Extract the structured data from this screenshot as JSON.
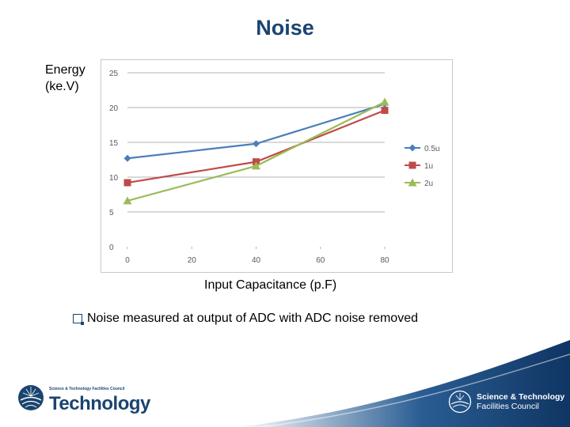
{
  "page": {
    "title": "Noise",
    "bullet": "Noise measured at output of ADC with ADC noise removed"
  },
  "chart_data": {
    "type": "line",
    "title": "Noise",
    "ylabel_line1": "Energy",
    "ylabel_line2": "(ke.V)",
    "xlabel": "Input Capacitance (p.F)",
    "x_ticks": [
      0,
      20,
      40,
      60,
      80
    ],
    "y_ticks": [
      0,
      5,
      10,
      15,
      20,
      25
    ],
    "xlim": [
      0,
      80
    ],
    "ylim": [
      0,
      25
    ],
    "grid": true,
    "legend_position": "right",
    "x": [
      0,
      40,
      80
    ],
    "series": [
      {
        "name": "0.5u",
        "values": [
          12.7,
          14.8,
          20.5
        ],
        "color": "#4a7ebb",
        "marker": "diamond"
      },
      {
        "name": "1u",
        "values": [
          9.2,
          12.2,
          19.6
        ],
        "color": "#be4b48",
        "marker": "square"
      },
      {
        "name": "2u",
        "values": [
          6.6,
          11.6,
          20.8
        ],
        "color": "#9bbb59",
        "marker": "triangle"
      }
    ]
  },
  "logos": {
    "left_small": "Science & Technology Facilities Council",
    "left_big": "Technology",
    "right_line1": "Science & Technology",
    "right_line2": "Facilities Council",
    "brand_color": "#1a4470"
  }
}
